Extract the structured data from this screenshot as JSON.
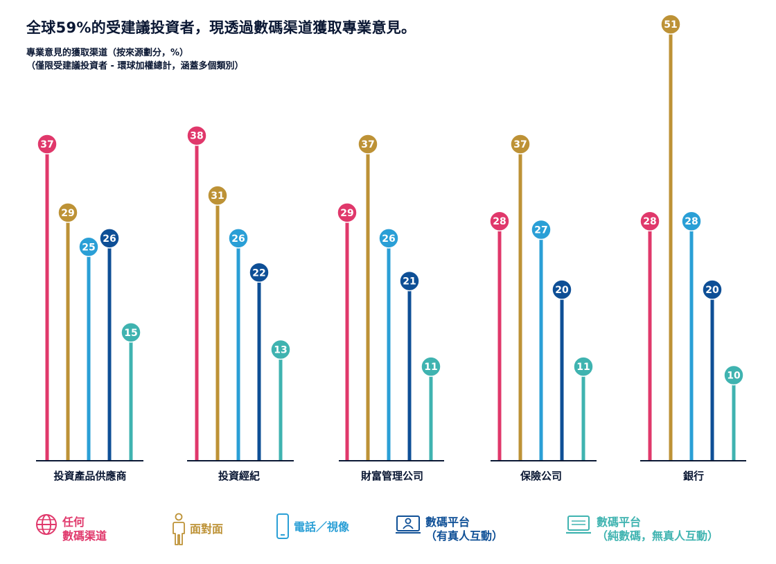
{
  "title": "全球59%的受建議投資者，現透過數碼渠道獲取專業意見。",
  "subtitle_line1": "專業意見的獲取渠道（按來源劃分，%）",
  "subtitle_line2": "（僅限受建議投資者 - 環球加權總計，涵蓋多個類別）",
  "colors": {
    "any": "#e0386b",
    "face": "#bd9236",
    "phone": "#2a9fd6",
    "digital_human": "#0e4f96",
    "digital_only": "#3fb3b0",
    "baseline": "#0a1733"
  },
  "legend": [
    {
      "line1": "任何",
      "line2": "數碼渠道",
      "icon": "globe-icon",
      "color": "#e0386b"
    },
    {
      "line1": "面對面",
      "line2": "",
      "icon": "person-icon",
      "color": "#bd9236"
    },
    {
      "line1": "電話／視像",
      "line2": "",
      "icon": "smartphone-icon",
      "color": "#2a9fd6"
    },
    {
      "line1": "數碼平台",
      "line2": "（有真人互動）",
      "icon": "video-call-icon",
      "color": "#0e4f96"
    },
    {
      "line1": "數碼平台",
      "line2": "（純數碼，無真人互動）",
      "icon": "laptop-icon",
      "color": "#3fb3b0"
    }
  ],
  "chart_data": {
    "type": "bar",
    "title": "全球59%的受建議投資者，現透過數碼渠道獲取專業意見。",
    "subtitle": "專業意見的獲取渠道（按來源劃分，%）（僅限受建議投資者 - 環球加權總計，涵蓋多個類別）",
    "categories": [
      "投資產品供應商",
      "投資經紀",
      "財富管理公司",
      "保險公司",
      "銀行"
    ],
    "series": [
      {
        "name": "任何數碼渠道",
        "values": [
          37,
          38,
          29,
          28,
          28
        ]
      },
      {
        "name": "面對面",
        "values": [
          29,
          31,
          37,
          37,
          51
        ]
      },
      {
        "name": "電話／視像",
        "values": [
          25,
          26,
          26,
          27,
          28
        ]
      },
      {
        "name": "數碼平台（有真人互動）",
        "values": [
          26,
          22,
          21,
          20,
          20
        ]
      },
      {
        "name": "數碼平台（純數碼，無真人互動）",
        "values": [
          15,
          13,
          11,
          11,
          10
        ]
      }
    ],
    "ylim": [
      0,
      51
    ],
    "grid": false,
    "legend_position": "bottom"
  }
}
